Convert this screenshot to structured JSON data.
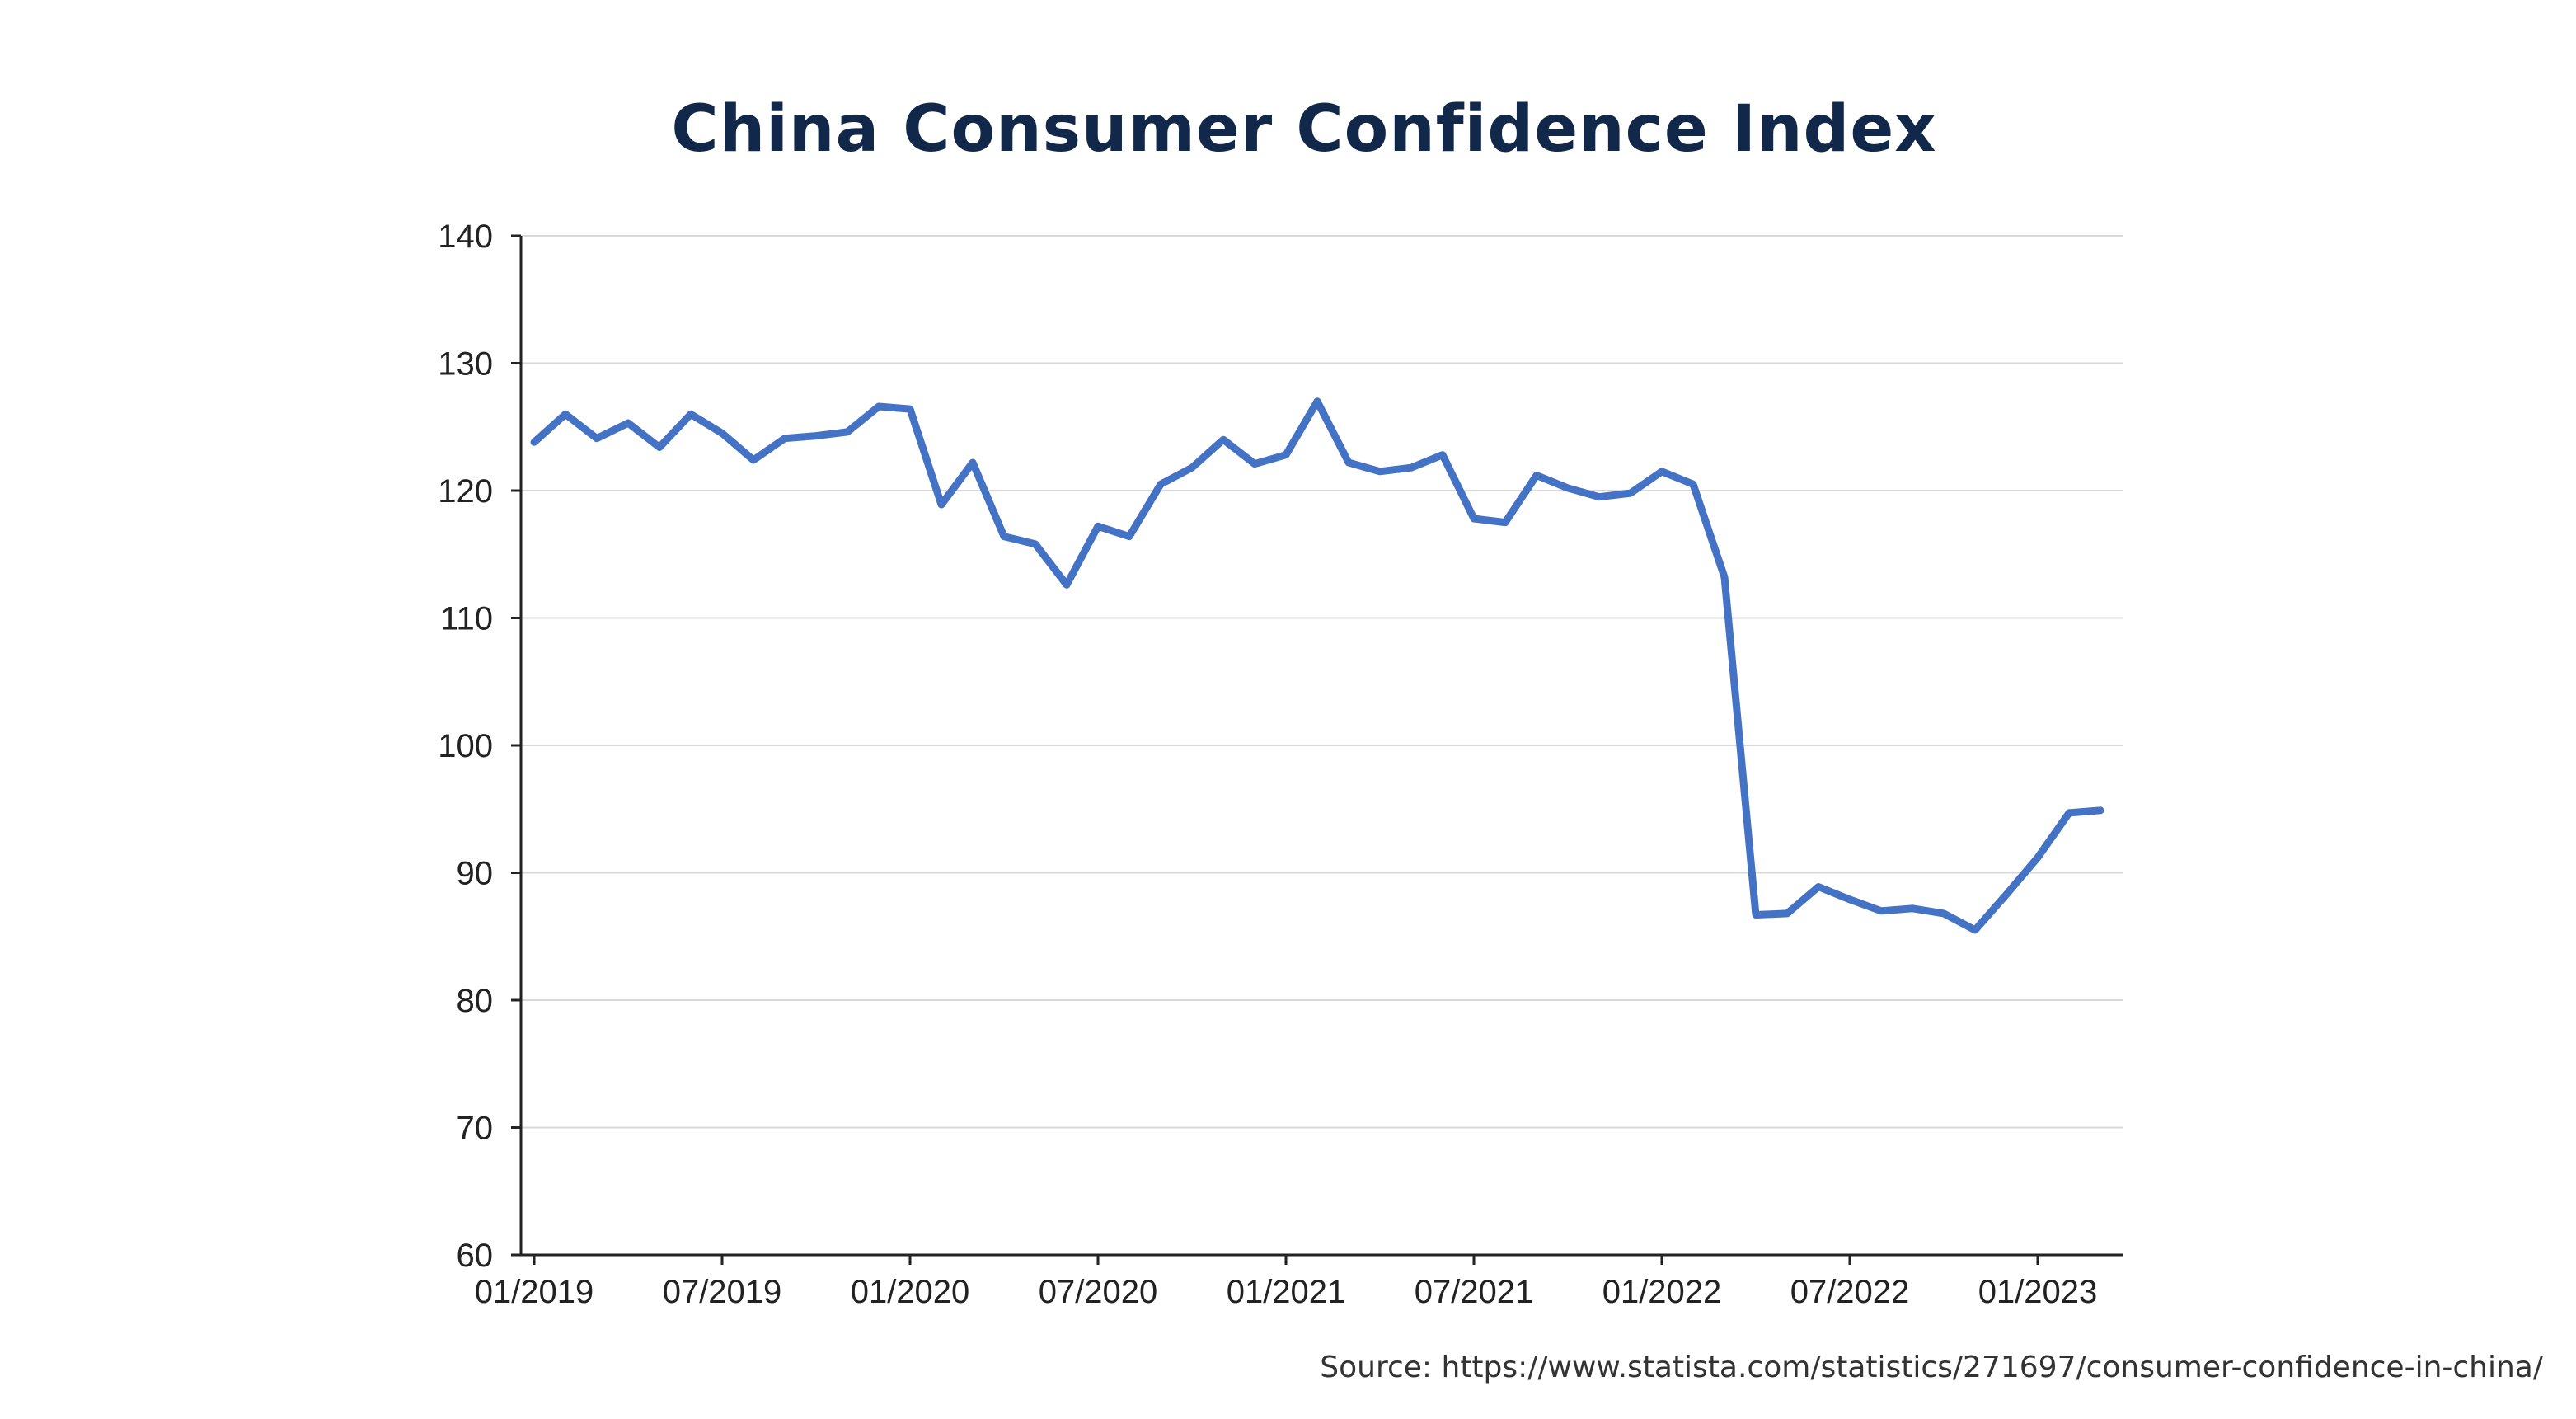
{
  "title": "China Consumer Confidence Index",
  "source": "Source: https://www.statista.com/statistics/271697/consumer-confidence-in-china/",
  "colors": {
    "line": "#4472c4",
    "grid": "#d9d9d9",
    "axis": "#222222",
    "title": "#12284a"
  },
  "chart_data": {
    "type": "line",
    "title": "China Consumer Confidence Index",
    "xlabel": "",
    "ylabel": "",
    "ylim": [
      60,
      140
    ],
    "yticks": [
      60,
      70,
      80,
      90,
      100,
      110,
      120,
      130,
      140
    ],
    "xtick_labels": [
      "01/2019",
      "07/2019",
      "01/2020",
      "07/2020",
      "01/2021",
      "07/2021",
      "01/2022",
      "07/2022",
      "01/2023"
    ],
    "grid": true,
    "legend": "none",
    "series": [
      {
        "x": [
          "01/2019",
          "02/2019",
          "03/2019",
          "04/2019",
          "05/2019",
          "06/2019",
          "07/2019",
          "08/2019",
          "09/2019",
          "10/2019",
          "11/2019",
          "12/2019",
          "01/2020",
          "02/2020",
          "03/2020",
          "04/2020",
          "05/2020",
          "06/2020",
          "07/2020",
          "08/2020",
          "09/2020",
          "10/2020",
          "11/2020",
          "12/2020",
          "01/2021",
          "02/2021",
          "03/2021",
          "04/2021",
          "05/2021",
          "06/2021",
          "07/2021",
          "08/2021",
          "09/2021",
          "10/2021",
          "11/2021",
          "12/2021",
          "01/2022",
          "02/2022",
          "03/2022",
          "04/2022",
          "05/2022",
          "06/2022",
          "07/2022",
          "08/2022",
          "09/2022",
          "10/2022",
          "11/2022",
          "12/2022",
          "01/2023",
          "02/2023",
          "03/2023"
        ],
        "values": [
          123.8,
          126.0,
          124.1,
          125.3,
          123.4,
          126.0,
          124.5,
          122.4,
          124.1,
          124.3,
          124.6,
          126.6,
          126.4,
          118.9,
          122.2,
          116.4,
          115.8,
          112.6,
          117.2,
          116.4,
          120.5,
          121.8,
          124.0,
          122.1,
          122.8,
          127.0,
          122.2,
          121.5,
          121.8,
          122.8,
          117.8,
          117.5,
          121.2,
          120.2,
          119.5,
          119.8,
          121.5,
          120.5,
          113.2,
          86.7,
          86.8,
          88.9,
          87.9,
          87.0,
          87.2,
          86.8,
          85.5,
          88.3,
          91.2,
          94.7,
          94.9
        ]
      }
    ]
  }
}
